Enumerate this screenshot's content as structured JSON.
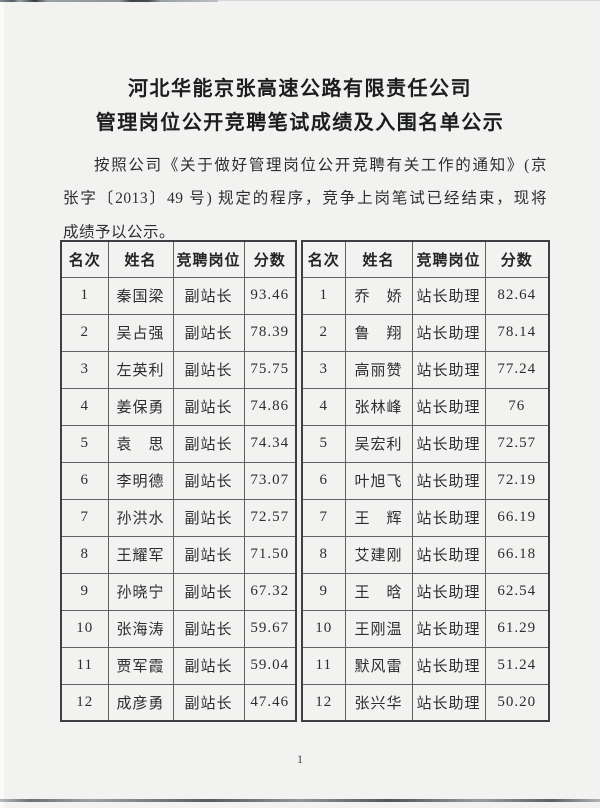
{
  "document": {
    "title_lines": [
      "河北华能京张高速公路有限责任公司",
      "管理岗位公开竞聘笔试成绩及入围名单公示"
    ],
    "paragraph_lines": [
      "按照公司《关于做好管理岗位公开竞聘有关工作的通知》(京",
      "张字〔2013〕49 号) 规定的程序，竞争上岗笔试已经结束，现将",
      "成绩予以公示。"
    ],
    "page_number": "1"
  },
  "table": {
    "headers": [
      "名次",
      "姓名",
      "竞聘岗位",
      "分数"
    ],
    "left_rows": [
      {
        "rank": "1",
        "name": "秦国梁",
        "position": "副站长",
        "score": "93.46"
      },
      {
        "rank": "2",
        "name": "吴占强",
        "position": "副站长",
        "score": "78.39"
      },
      {
        "rank": "3",
        "name": "左英利",
        "position": "副站长",
        "score": "75.75"
      },
      {
        "rank": "4",
        "name": "姜保勇",
        "position": "副站长",
        "score": "74.86"
      },
      {
        "rank": "5",
        "name": "袁　思",
        "position": "副站长",
        "score": "74.34"
      },
      {
        "rank": "6",
        "name": "李明德",
        "position": "副站长",
        "score": "73.07"
      },
      {
        "rank": "7",
        "name": "孙洪水",
        "position": "副站长",
        "score": "72.57"
      },
      {
        "rank": "8",
        "name": "王耀军",
        "position": "副站长",
        "score": "71.50"
      },
      {
        "rank": "9",
        "name": "孙晓宁",
        "position": "副站长",
        "score": "67.32"
      },
      {
        "rank": "10",
        "name": "张海涛",
        "position": "副站长",
        "score": "59.67"
      },
      {
        "rank": "11",
        "name": "贾军霞",
        "position": "副站长",
        "score": "59.04"
      },
      {
        "rank": "12",
        "name": "成彦勇",
        "position": "副站长",
        "score": "47.46"
      }
    ],
    "right_rows": [
      {
        "rank": "1",
        "name": "乔　娇",
        "position": "站长助理",
        "score": "82.64"
      },
      {
        "rank": "2",
        "name": "鲁　翔",
        "position": "站长助理",
        "score": "78.14"
      },
      {
        "rank": "3",
        "name": "高丽赞",
        "position": "站长助理",
        "score": "77.24"
      },
      {
        "rank": "4",
        "name": "张林峰",
        "position": "站长助理",
        "score": "76"
      },
      {
        "rank": "5",
        "name": "吴宏利",
        "position": "站长助理",
        "score": "72.57"
      },
      {
        "rank": "6",
        "name": "叶旭飞",
        "position": "站长助理",
        "score": "72.19"
      },
      {
        "rank": "7",
        "name": "王　辉",
        "position": "站长助理",
        "score": "66.19"
      },
      {
        "rank": "8",
        "name": "艾建刚",
        "position": "站长助理",
        "score": "66.18"
      },
      {
        "rank": "9",
        "name": "王　晗",
        "position": "站长助理",
        "score": "62.54"
      },
      {
        "rank": "10",
        "name": "王刚温",
        "position": "站长助理",
        "score": "61.29"
      },
      {
        "rank": "11",
        "name": "默风雷",
        "position": "站长助理",
        "score": "51.24"
      },
      {
        "rank": "12",
        "name": "张兴华",
        "position": "站长助理",
        "score": "50.20"
      }
    ]
  },
  "colors": {
    "paper": "#f2f3f0",
    "ink": "#2b2d30",
    "table_border": "#5f6366"
  }
}
